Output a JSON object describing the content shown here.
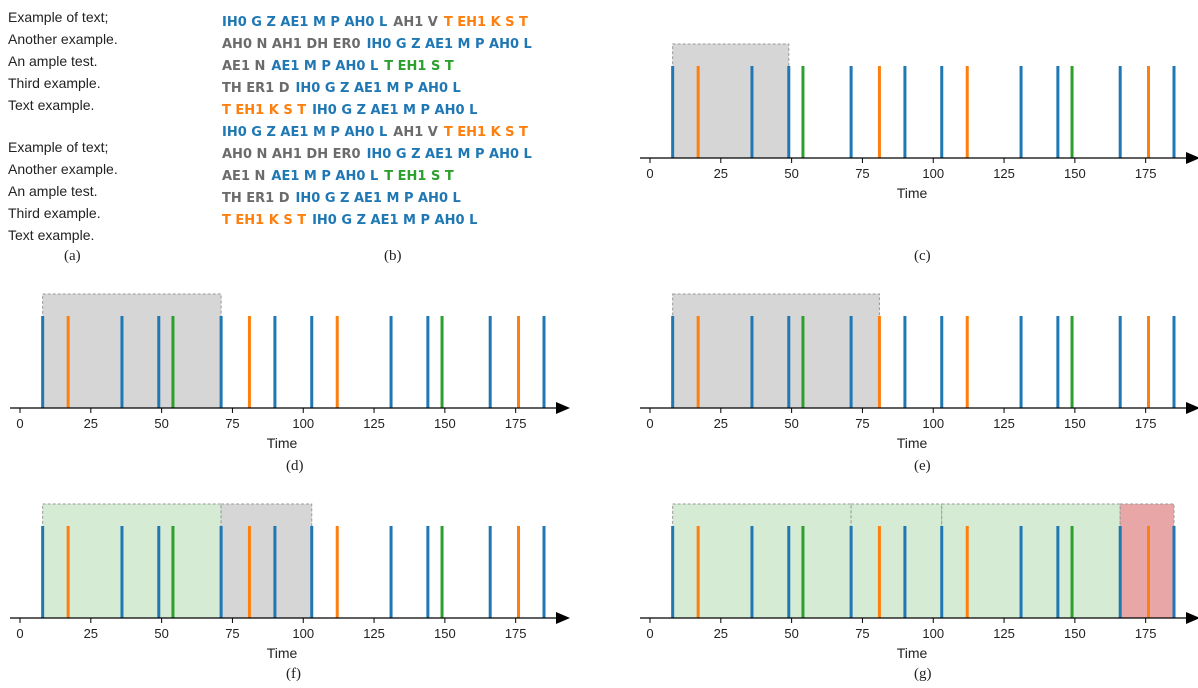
{
  "panel_a": {
    "group1": [
      "Example of text;",
      "Another example.",
      "An ample test.",
      "Third example.",
      "Text example."
    ],
    "group2": [
      "Example of text;",
      "Another example.",
      "An ample test.",
      "Third example.",
      "Text example."
    ]
  },
  "panel_b": {
    "lines": [
      [
        {
          "t": "IH0 G Z AE1 M P AH0 L",
          "c": "blue"
        },
        {
          "t": "AH1 V",
          "c": "gray"
        },
        {
          "t": "T EH1 K S T",
          "c": "orange"
        }
      ],
      [
        {
          "t": "AH0 N AH1 DH ER0",
          "c": "gray"
        },
        {
          "t": "IH0 G Z AE1 M P AH0 L",
          "c": "blue"
        }
      ],
      [
        {
          "t": "AE1 N",
          "c": "gray"
        },
        {
          "t": "AE1 M P AH0 L",
          "c": "blue"
        },
        {
          "t": "T EH1 S T",
          "c": "green"
        }
      ],
      [
        {
          "t": "TH ER1 D",
          "c": "gray"
        },
        {
          "t": "IH0 G Z AE1 M P AH0 L",
          "c": "blue"
        }
      ],
      [
        {
          "t": "T EH1 K S T",
          "c": "orange"
        },
        {
          "t": "IH0 G Z AE1 M P AH0 L",
          "c": "blue"
        }
      ],
      [
        {
          "t": "IH0 G Z AE1 M P AH0 L",
          "c": "blue"
        },
        {
          "t": "AH1 V",
          "c": "gray"
        },
        {
          "t": "T EH1 K S T",
          "c": "orange"
        }
      ],
      [
        {
          "t": "AH0 N AH1 DH ER0",
          "c": "gray"
        },
        {
          "t": "IH0 G Z AE1 M P AH0 L",
          "c": "blue"
        }
      ],
      [
        {
          "t": "AE1 N",
          "c": "gray"
        },
        {
          "t": "AE1 M P AH0 L",
          "c": "blue"
        },
        {
          "t": "T EH1 S T",
          "c": "green"
        }
      ],
      [
        {
          "t": "TH ER1 D",
          "c": "gray"
        },
        {
          "t": "IH0 G Z AE1 M P AH0 L",
          "c": "blue"
        }
      ],
      [
        {
          "t": "T EH1 K S T",
          "c": "orange"
        },
        {
          "t": "IH0 G Z AE1 M P AH0 L",
          "c": "blue"
        }
      ]
    ]
  },
  "colors": {
    "blue": "#1f77b4",
    "orange": "#ff7f0e",
    "green": "#2ca02c",
    "gray": "#6b6b6b",
    "region_gray": "#d6d6d6",
    "region_green": "#d5ebd3",
    "region_red": "#e8a6a6",
    "region_border": "#999999"
  },
  "captions": {
    "a": "(a)",
    "b": "(b)",
    "c": "(c)",
    "d": "(d)",
    "e": "(e)",
    "f": "(f)",
    "g": "(g)"
  },
  "chart_data": {
    "type": "timeline",
    "xlabel": "Time",
    "xlim": [
      0,
      185
    ],
    "xticks": [
      0,
      25,
      50,
      75,
      100,
      125,
      150,
      175
    ],
    "events": [
      {
        "x": 8,
        "color": "blue"
      },
      {
        "x": 17,
        "color": "orange"
      },
      {
        "x": 36,
        "color": "blue"
      },
      {
        "x": 49,
        "color": "blue"
      },
      {
        "x": 54,
        "color": "green"
      },
      {
        "x": 71,
        "color": "blue"
      },
      {
        "x": 81,
        "color": "orange"
      },
      {
        "x": 90,
        "color": "blue"
      },
      {
        "x": 103,
        "color": "blue"
      },
      {
        "x": 112,
        "color": "orange"
      },
      {
        "x": 131,
        "color": "blue"
      },
      {
        "x": 144,
        "color": "blue"
      },
      {
        "x": 149,
        "color": "green"
      },
      {
        "x": 166,
        "color": "blue"
      },
      {
        "x": 176,
        "color": "orange"
      },
      {
        "x": 185,
        "color": "blue"
      }
    ],
    "panels": {
      "c": {
        "regions": [
          {
            "start": 8,
            "end": 49,
            "color": "gray"
          }
        ]
      },
      "d": {
        "regions": [
          {
            "start": 8,
            "end": 71,
            "color": "gray"
          }
        ]
      },
      "e": {
        "regions": [
          {
            "start": 8,
            "end": 81,
            "color": "gray"
          }
        ]
      },
      "f": {
        "regions": [
          {
            "start": 8,
            "end": 71,
            "color": "green"
          },
          {
            "start": 71,
            "end": 103,
            "color": "gray"
          }
        ]
      },
      "g": {
        "regions": [
          {
            "start": 8,
            "end": 71,
            "color": "green"
          },
          {
            "start": 71,
            "end": 103,
            "color": "green"
          },
          {
            "start": 103,
            "end": 166,
            "color": "green"
          },
          {
            "start": 166,
            "end": 185,
            "color": "red"
          }
        ]
      }
    }
  }
}
